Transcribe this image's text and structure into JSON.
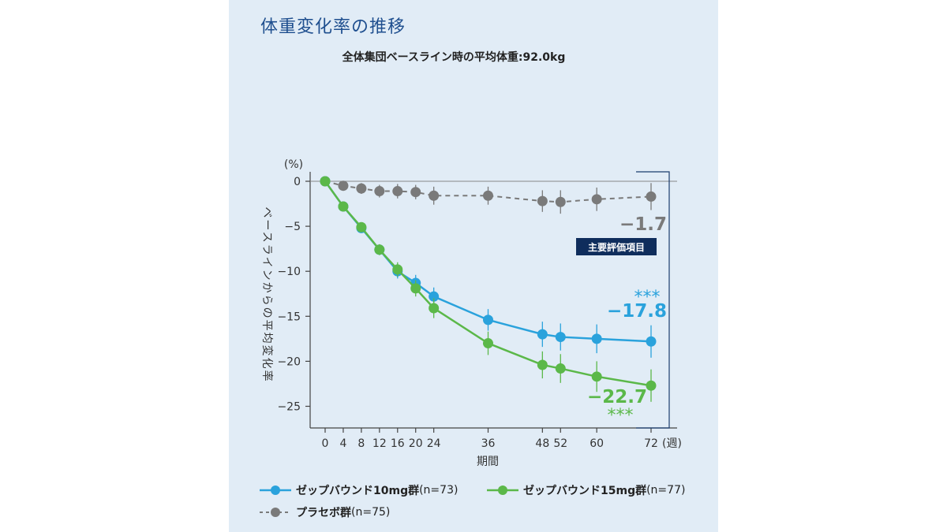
{
  "title": "体重変化率の推移",
  "subtitle": "全体集団ベースライン時の平均体重:92.0kg",
  "chart_data": {
    "type": "line",
    "x": [
      0,
      4,
      8,
      12,
      16,
      20,
      24,
      36,
      48,
      52,
      60,
      72
    ],
    "xlabel": "期間",
    "x_unit": "(週)",
    "ylabel": "ベースラインからの平均変化率",
    "y_unit": "(%)",
    "ylim": [
      -27.5,
      0
    ],
    "yticks": [
      0,
      -5,
      -10,
      -15,
      -20,
      -25
    ],
    "ytick_labels": [
      "0",
      "−5",
      "−10",
      "−15",
      "−20",
      "−25"
    ],
    "grid": false,
    "series": [
      {
        "name": "プラセボ群",
        "n_label": "(n=75)",
        "color": "#7a7a7a",
        "dashed": true,
        "values": [
          0,
          -0.5,
          -0.8,
          -1.1,
          -1.1,
          -1.2,
          -1.6,
          -1.6,
          -2.2,
          -2.3,
          -2.0,
          -1.7
        ],
        "err": [
          0,
          0.5,
          0.6,
          0.7,
          0.8,
          0.8,
          1.0,
          1.0,
          1.2,
          1.3,
          1.3,
          1.5
        ]
      },
      {
        "name": "ゼップバウンド10mg群",
        "n_label": "(n=73)",
        "color": "#2aa2dc",
        "dashed": false,
        "values": [
          0,
          -2.8,
          -5.2,
          -7.6,
          -10.0,
          -11.3,
          -12.8,
          -15.4,
          -17.0,
          -17.3,
          -17.5,
          -17.8
        ],
        "err": [
          0,
          0.3,
          0.5,
          0.6,
          0.8,
          0.9,
          1.0,
          1.2,
          1.4,
          1.5,
          1.6,
          1.8
        ]
      },
      {
        "name": "ゼップバウンド15mg群",
        "n_label": "(n=77)",
        "color": "#5bb849",
        "dashed": false,
        "values": [
          0,
          -2.8,
          -5.1,
          -7.6,
          -9.8,
          -11.9,
          -14.1,
          -18.0,
          -20.4,
          -20.8,
          -21.7,
          -22.7
        ],
        "err": [
          0,
          0.3,
          0.5,
          0.6,
          0.8,
          0.9,
          1.1,
          1.3,
          1.5,
          1.6,
          1.7,
          1.8
        ]
      }
    ],
    "annotations": {
      "placebo_final": "−1.7",
      "dose10_final": "−17.8",
      "dose15_final": "−22.7",
      "significance": "***",
      "primary_endpoint": "主要評価項目"
    },
    "legend_position": "bottom"
  }
}
